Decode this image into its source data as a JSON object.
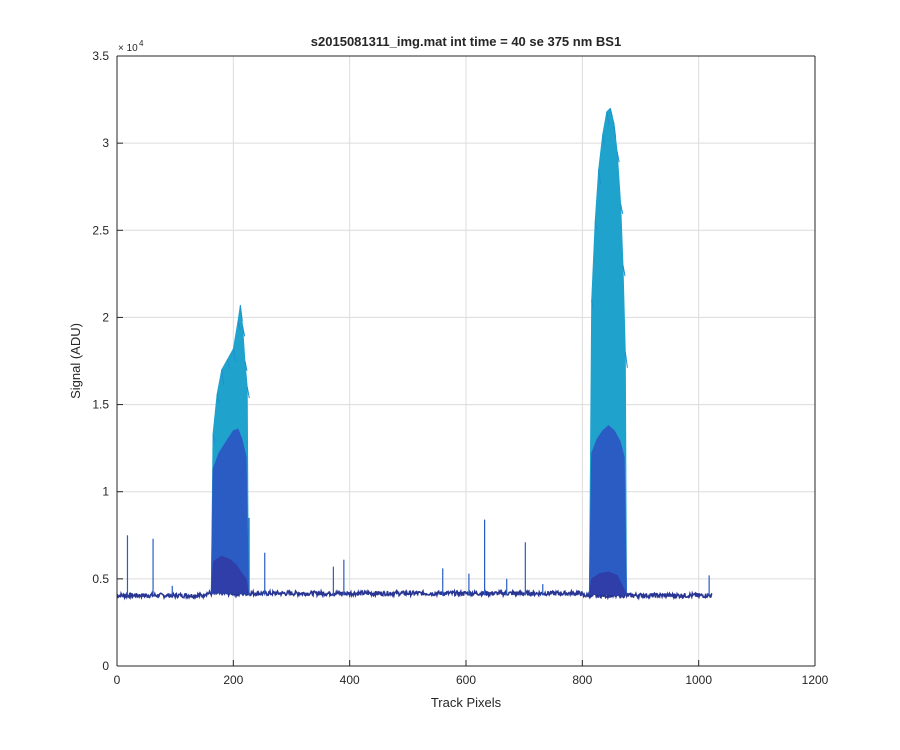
{
  "chart_data": {
    "type": "area",
    "title": "s2015081311_img.mat int time = 40 se  375 nm BS1",
    "xlabel": "Track Pixels",
    "ylabel": "Signal (ADU)",
    "xlim": [
      0,
      1200
    ],
    "ylim": [
      0,
      35000
    ],
    "x_ticks": [
      0,
      200,
      400,
      600,
      800,
      1000,
      1200
    ],
    "y_ticks": [
      0,
      5000,
      10000,
      15000,
      20000,
      25000,
      30000,
      35000
    ],
    "x_tick_labels": [
      "0",
      "200",
      "400",
      "600",
      "800",
      "1000",
      "1200"
    ],
    "y_tick_labels": [
      "0",
      "0.5",
      "1",
      "1.5",
      "2",
      "2.5",
      "3",
      "3.5"
    ],
    "y_exponent_label": "× 10",
    "y_exponent_power": "4",
    "grid": true,
    "colors": {
      "layer_top": "#1fa2cc",
      "layer_upper": "#1f8fd0",
      "layer_mid": "#2a5cc4",
      "layer_low": "#2f3ea8",
      "baseline": "#283593",
      "grid": "#dcdcdc",
      "axis": "#262626"
    },
    "baseline_level": 4050,
    "x_data_end": 1023,
    "bands": [
      {
        "name": "band-left",
        "layers": [
          {
            "points": [
              [
                162,
                4200
              ],
              [
                165,
                13300
              ],
              [
                172,
                15600
              ],
              [
                180,
                17000
              ],
              [
                190,
                17600
              ],
              [
                200,
                18200
              ],
              [
                208,
                19800
              ],
              [
                212,
                20700
              ],
              [
                216,
                19500
              ],
              [
                220,
                17500
              ],
              [
                224,
                16000
              ],
              [
                226,
                4200
              ]
            ]
          },
          {
            "points": [
              [
                162,
                4200
              ],
              [
                165,
                11300
              ],
              [
                175,
                12200
              ],
              [
                190,
                13000
              ],
              [
                200,
                13500
              ],
              [
                208,
                13600
              ],
              [
                215,
                13000
              ],
              [
                222,
                12000
              ],
              [
                226,
                4200
              ]
            ]
          },
          {
            "points": [
              [
                162,
                4200
              ],
              [
                166,
                6000
              ],
              [
                180,
                6300
              ],
              [
                195,
                6100
              ],
              [
                205,
                5800
              ],
              [
                215,
                5300
              ],
              [
                222,
                5000
              ],
              [
                226,
                4200
              ]
            ]
          }
        ]
      },
      {
        "name": "band-right",
        "layers": [
          {
            "points": [
              [
                812,
                4100
              ],
              [
                816,
                21000
              ],
              [
                822,
                25500
              ],
              [
                828,
                28500
              ],
              [
                835,
                30500
              ],
              [
                842,
                31800
              ],
              [
                848,
                32000
              ],
              [
                854,
                31200
              ],
              [
                860,
                29500
              ],
              [
                866,
                26500
              ],
              [
                870,
                23000
              ],
              [
                874,
                18000
              ],
              [
                876,
                4100
              ]
            ]
          },
          {
            "points": [
              [
                812,
                4100
              ],
              [
                816,
                12200
              ],
              [
                825,
                13000
              ],
              [
                835,
                13500
              ],
              [
                845,
                13800
              ],
              [
                855,
                13500
              ],
              [
                865,
                12900
              ],
              [
                872,
                12000
              ],
              [
                876,
                4100
              ]
            ]
          },
          {
            "points": [
              [
                812,
                4100
              ],
              [
                816,
                5000
              ],
              [
                830,
                5300
              ],
              [
                845,
                5400
              ],
              [
                860,
                5200
              ],
              [
                876,
                4100
              ]
            ]
          }
        ]
      }
    ],
    "spikes": [
      {
        "x": 18,
        "y": 7500
      },
      {
        "x": 62,
        "y": 7300
      },
      {
        "x": 95,
        "y": 4600
      },
      {
        "x": 227,
        "y": 8500
      },
      {
        "x": 254,
        "y": 6500
      },
      {
        "x": 372,
        "y": 5700
      },
      {
        "x": 390,
        "y": 6100
      },
      {
        "x": 560,
        "y": 5600
      },
      {
        "x": 605,
        "y": 5300
      },
      {
        "x": 632,
        "y": 8400
      },
      {
        "x": 670,
        "y": 5000
      },
      {
        "x": 702,
        "y": 7100
      },
      {
        "x": 732,
        "y": 4700
      },
      {
        "x": 1018,
        "y": 5200
      }
    ]
  }
}
